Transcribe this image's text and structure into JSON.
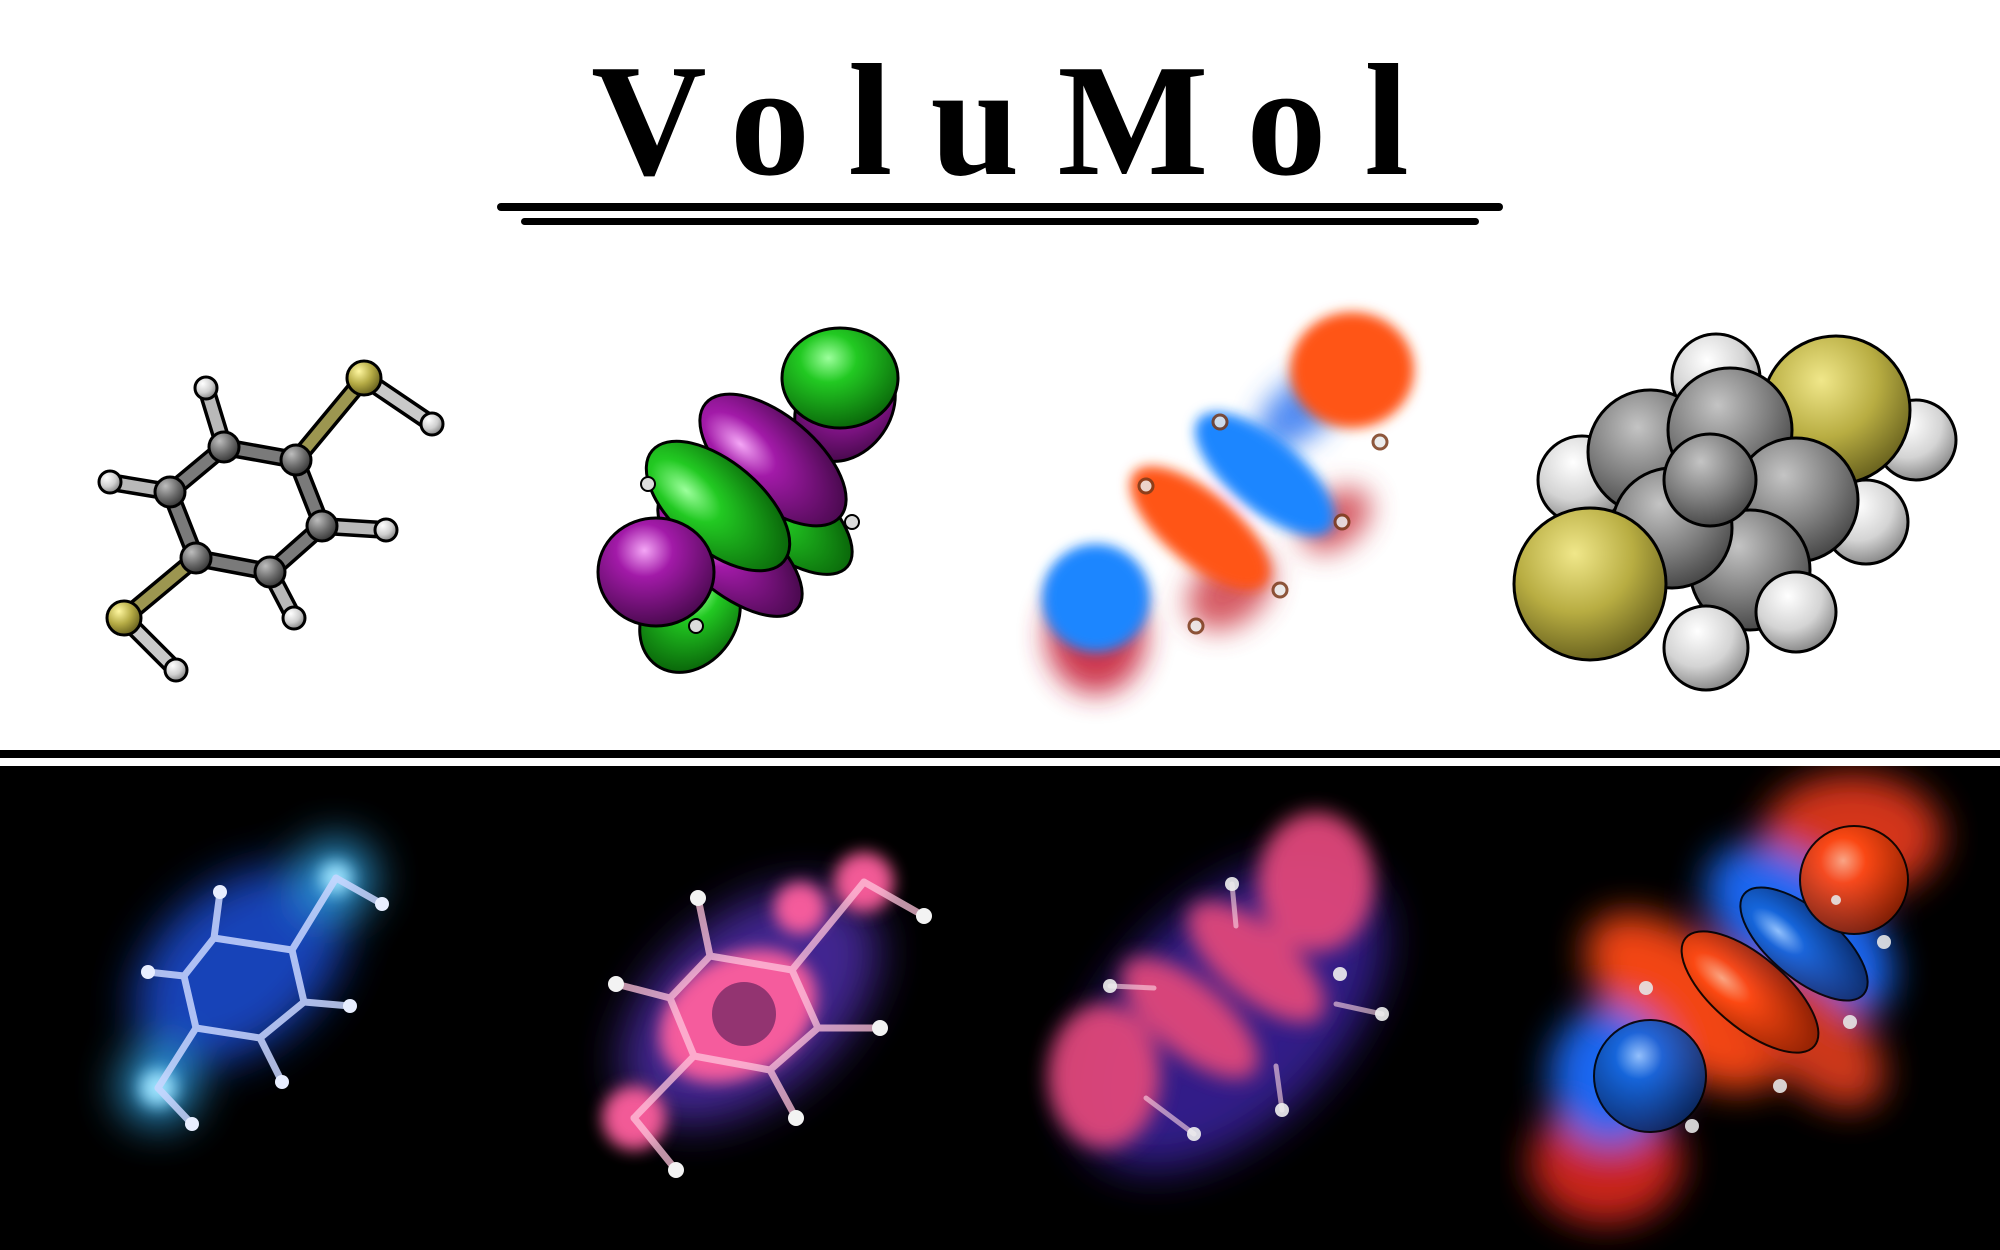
{
  "header": {
    "title": "VoluMol"
  },
  "colors": {
    "carbon": "#6b6b6b",
    "sulfur": "#b5ab45",
    "hydrogen": "#d9d9d9",
    "orbital_green": "#1ec21e",
    "orbital_purple": "#a21aa8",
    "density_red": "#ff4a12",
    "density_blue": "#1f86ff",
    "glow_cyan": "#39b8ff",
    "glow_pink": "#ff5f9e",
    "background_dark": "#000000"
  },
  "panels_top": [
    {
      "icon": "ball-and-stick-molecule-icon"
    },
    {
      "icon": "isosurface-orbital-icon"
    },
    {
      "icon": "volumetric-orbital-icon"
    },
    {
      "icon": "space-filling-molecule-icon"
    }
  ],
  "panels_bottom": [
    {
      "icon": "glowing-atoms-molecule-icon"
    },
    {
      "icon": "glowing-density-molecule-icon"
    },
    {
      "icon": "glowing-orbital-icon"
    },
    {
      "icon": "dark-volumetric-orbital-icon"
    }
  ]
}
